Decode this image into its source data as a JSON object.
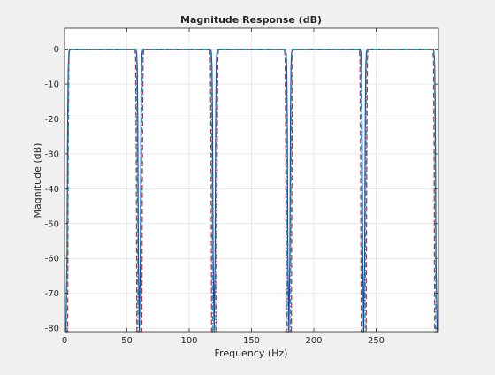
{
  "chart_data": {
    "type": "line",
    "title": "Magnitude Response (dB)",
    "xlabel": "Frequency (Hz)",
    "ylabel": "Magnitude (dB)",
    "xlim": [
      0,
      300
    ],
    "ylim": [
      -81,
      6
    ],
    "xticks": [
      0,
      50,
      100,
      150,
      200,
      250
    ],
    "yticks": [
      0,
      -10,
      -20,
      -30,
      -40,
      -50,
      -60,
      -70,
      -80
    ],
    "grid": true,
    "legend": "none",
    "colors": {
      "axes_bg": "#ffffff",
      "figure_bg": "#f0f0f0",
      "grid": "#dcdcdc",
      "text": "#262626"
    },
    "series": [
      {
        "color": "#1f3fbf",
        "style": "solid",
        "x": [
          0,
          1.0,
          2.0,
          2.5,
          3.0,
          3.5,
          4.0,
          57.2,
          57.8,
          58.3,
          58.7,
          59.2,
          60.0,
          60.8,
          61.3,
          61.7,
          62.2,
          62.8,
          117.2,
          117.8,
          118.3,
          118.7,
          119.2,
          120.0,
          120.8,
          121.3,
          121.7,
          122.2,
          122.8,
          177.2,
          177.8,
          178.3,
          178.7,
          179.2,
          180.0,
          180.8,
          181.3,
          181.7,
          182.2,
          182.8,
          237.2,
          237.8,
          238.3,
          238.7,
          239.2,
          240.0,
          240.8,
          241.3,
          241.7,
          242.2,
          242.8,
          296.0,
          296.5,
          297.0,
          297.5,
          298.0,
          299.0,
          300.0
        ],
        "y": [
          -81,
          -81,
          -60,
          -20,
          -5,
          -1,
          0,
          0,
          -1,
          -5,
          -20,
          -60,
          -81,
          -60,
          -20,
          -5,
          -1,
          0,
          0,
          -1,
          -5,
          -20,
          -60,
          -81,
          -60,
          -20,
          -5,
          -1,
          0,
          0,
          -1,
          -5,
          -20,
          -60,
          -81,
          -60,
          -20,
          -5,
          -1,
          0,
          0,
          -1,
          -5,
          -20,
          -60,
          -81,
          -60,
          -20,
          -5,
          -1,
          0,
          0,
          -1,
          -5,
          -20,
          -60,
          -81,
          -81
        ]
      },
      {
        "color": "#d62728",
        "style": "dashed",
        "x": [
          0,
          1.0,
          2.5,
          3.0,
          3.5,
          4.0,
          56.5,
          57.0,
          57.5,
          58.0,
          58.5,
          59.0,
          60.0,
          61.0,
          61.5,
          62.0,
          62.5,
          63.0,
          63.5,
          116.5,
          117.0,
          117.5,
          118.0,
          118.5,
          119.0,
          120.0,
          121.0,
          121.5,
          122.0,
          122.5,
          123.0,
          123.5,
          176.5,
          177.0,
          177.5,
          178.0,
          178.5,
          179.0,
          180.0,
          181.0,
          181.5,
          182.0,
          182.5,
          183.0,
          183.5,
          236.5,
          237.0,
          237.5,
          238.0,
          238.5,
          239.0,
          240.0,
          241.0,
          241.5,
          242.0,
          242.5,
          243.0,
          243.5,
          295.5,
          296.0,
          296.5,
          297.0,
          297.5,
          298.0,
          300.0
        ],
        "y": [
          -81,
          -81,
          -81,
          -30,
          -3,
          0,
          0,
          -3,
          -30,
          -81,
          -81,
          -81,
          -81,
          -81,
          -81,
          -81,
          -30,
          -3,
          0,
          0,
          -3,
          -30,
          -81,
          -81,
          -81,
          -81,
          -81,
          -81,
          -81,
          -30,
          -3,
          0,
          0,
          -3,
          -30,
          -81,
          -81,
          -81,
          -81,
          -81,
          -81,
          -81,
          -30,
          -3,
          0,
          0,
          -3,
          -30,
          -81,
          -81,
          -81,
          -81,
          -81,
          -81,
          -81,
          -30,
          -3,
          0,
          0,
          -3,
          -30,
          -81,
          -81,
          -81,
          -81
        ]
      },
      {
        "color": "#00aaaa",
        "style": "dashdot",
        "x": [
          0,
          1.5,
          2.8,
          3.3,
          3.8,
          4.5,
          56.8,
          57.3,
          57.8,
          58.3,
          58.8,
          60.0,
          61.2,
          61.7,
          62.2,
          62.7,
          63.2,
          116.8,
          117.3,
          117.8,
          118.3,
          118.8,
          120.0,
          121.2,
          121.7,
          122.2,
          122.7,
          123.2,
          176.8,
          177.3,
          177.8,
          178.3,
          178.8,
          180.0,
          181.2,
          181.7,
          182.2,
          182.7,
          183.2,
          236.8,
          237.3,
          237.8,
          238.3,
          238.8,
          240.0,
          241.2,
          241.7,
          242.2,
          242.7,
          243.2,
          295.8,
          296.3,
          296.8,
          297.3,
          297.8,
          300.0
        ],
        "y": [
          -81,
          -81,
          -40,
          -5,
          -1,
          0,
          0,
          -1,
          -5,
          -40,
          -81,
          -81,
          -81,
          -40,
          -5,
          -1,
          0,
          0,
          -1,
          -5,
          -40,
          -81,
          -81,
          -81,
          -40,
          -5,
          -1,
          0,
          0,
          -1,
          -5,
          -40,
          -81,
          -81,
          -81,
          -40,
          -5,
          -1,
          0,
          0,
          -1,
          -5,
          -40,
          -81,
          -81,
          -81,
          -40,
          -5,
          -1,
          0,
          0,
          -1,
          -5,
          -40,
          -81,
          -81
        ]
      }
    ]
  }
}
